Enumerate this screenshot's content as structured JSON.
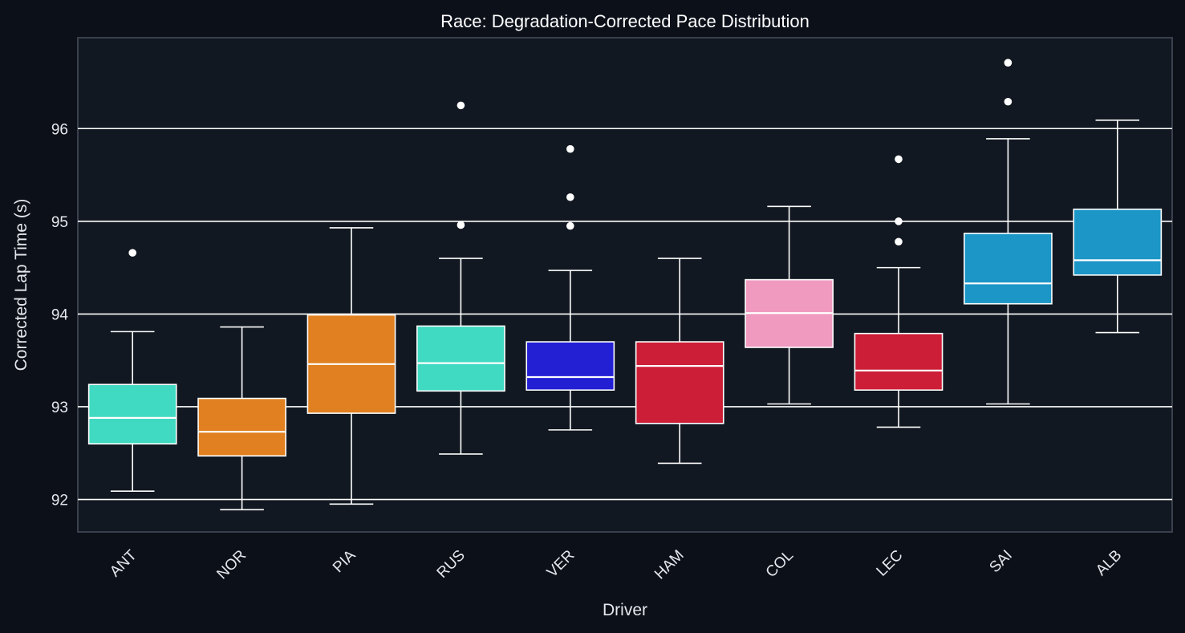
{
  "chart_data": {
    "type": "box",
    "title": "Race: Degradation-Corrected Pace Distribution",
    "xlabel": "Driver",
    "ylabel": "Corrected Lap Time (s)",
    "ylim": [
      91.65,
      96.98
    ],
    "yticks": [
      92,
      93,
      94,
      95,
      96
    ],
    "grid": "horizontal",
    "categories": [
      "ANT",
      "NOR",
      "PIA",
      "RUS",
      "VER",
      "HAM",
      "COL",
      "LEC",
      "SAI",
      "ALB"
    ],
    "series": [
      {
        "label": "ANT",
        "color": "#40d9c1",
        "whislo": 92.09,
        "q1": 92.6,
        "median": 92.88,
        "q3": 93.24,
        "whishi": 93.81,
        "fliers": [
          94.66
        ]
      },
      {
        "label": "NOR",
        "color": "#e08020",
        "whislo": 91.89,
        "q1": 92.47,
        "median": 92.73,
        "q3": 93.09,
        "whishi": 93.86,
        "fliers": []
      },
      {
        "label": "PIA",
        "color": "#e08020",
        "whislo": 91.95,
        "q1": 92.93,
        "median": 93.46,
        "q3": 93.99,
        "whishi": 94.93,
        "fliers": []
      },
      {
        "label": "RUS",
        "color": "#40d9c1",
        "whislo": 92.49,
        "q1": 93.17,
        "median": 93.47,
        "q3": 93.87,
        "whishi": 94.6,
        "fliers": [
          94.96,
          96.25
        ]
      },
      {
        "label": "VER",
        "color": "#2320d4",
        "whislo": 92.75,
        "q1": 93.18,
        "median": 93.32,
        "q3": 93.7,
        "whishi": 94.47,
        "fliers": [
          94.95,
          95.26,
          95.78
        ]
      },
      {
        "label": "HAM",
        "color": "#cc1e36",
        "whislo": 92.39,
        "q1": 92.82,
        "median": 93.44,
        "q3": 93.7,
        "whishi": 94.6,
        "fliers": []
      },
      {
        "label": "COL",
        "color": "#f09ac0",
        "whislo": 93.03,
        "q1": 93.64,
        "median": 94.01,
        "q3": 94.37,
        "whishi": 95.16,
        "fliers": []
      },
      {
        "label": "LEC",
        "color": "#cc1e36",
        "whislo": 92.78,
        "q1": 93.18,
        "median": 93.39,
        "q3": 93.79,
        "whishi": 94.5,
        "fliers": [
          94.78,
          95.0,
          95.67
        ]
      },
      {
        "label": "SAI",
        "color": "#1b96c6",
        "whislo": 93.03,
        "q1": 94.11,
        "median": 94.33,
        "q3": 94.87,
        "whishi": 95.89,
        "fliers": [
          96.29,
          96.71
        ]
      },
      {
        "label": "ALB",
        "color": "#1b96c6",
        "whislo": 93.8,
        "q1": 94.42,
        "median": 94.58,
        "q3": 95.13,
        "whishi": 96.09,
        "fliers": []
      }
    ]
  }
}
